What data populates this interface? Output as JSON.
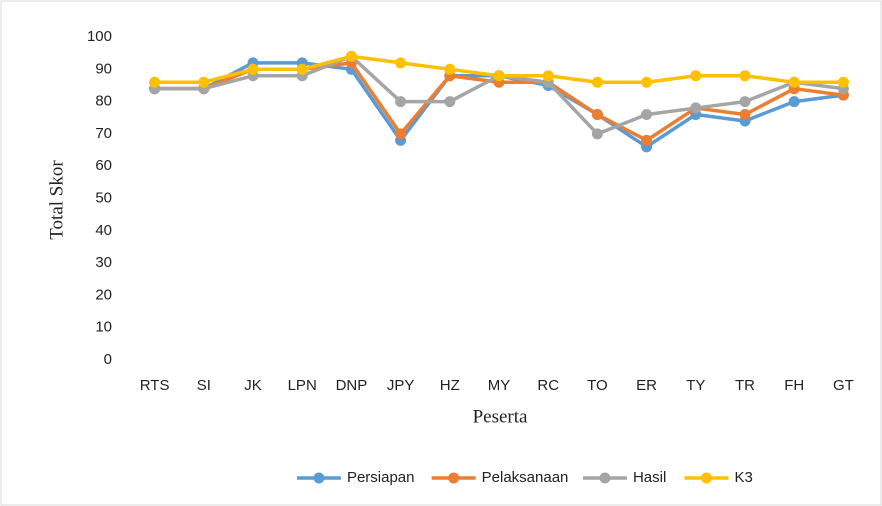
{
  "chart_data": {
    "type": "line",
    "x_label": "Peserta",
    "y_label": "Total Skor",
    "categories": [
      "RTS",
      "SI",
      "JK",
      "LPN",
      "DNP",
      "JPY",
      "HZ",
      "MY",
      "RC",
      "TO",
      "ER",
      "TY",
      "TR",
      "FH",
      "GT"
    ],
    "series": [
      {
        "name": "Persiapan",
        "color": "#5b9bd5",
        "values": [
          84,
          84,
          92,
          92,
          90,
          68,
          88,
          88,
          85,
          76,
          66,
          76,
          74,
          80,
          82
        ]
      },
      {
        "name": "Pelaksanaan",
        "color": "#ed7d31",
        "values": [
          84,
          84,
          90,
          90,
          92,
          70,
          88,
          86,
          86,
          76,
          68,
          78,
          76,
          84,
          82
        ]
      },
      {
        "name": "Hasil",
        "color": "#a5a5a5",
        "values": [
          84,
          84,
          88,
          88,
          94,
          80,
          80,
          88,
          86,
          70,
          76,
          78,
          80,
          86,
          84
        ]
      },
      {
        "name": "K3",
        "color": "#ffc000",
        "values": [
          86,
          86,
          90,
          90,
          94,
          92,
          90,
          88,
          88,
          86,
          86,
          88,
          88,
          86,
          86
        ]
      }
    ],
    "ylim": [
      0,
      100
    ],
    "yticks": [
      0,
      10,
      20,
      30,
      40,
      50,
      60,
      70,
      80,
      90,
      100
    ],
    "grid": false,
    "legend": "bottom"
  }
}
